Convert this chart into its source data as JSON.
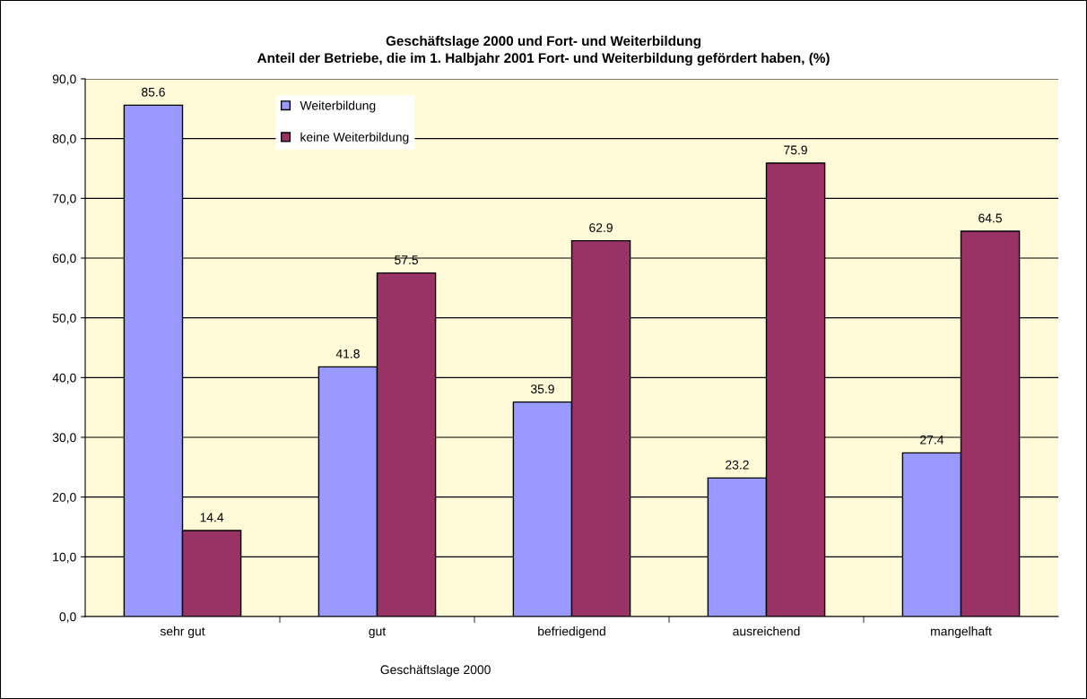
{
  "chart_data": {
    "type": "bar",
    "title": "Geschäftslage 2000 und Fort- und Weiterbildung",
    "subtitle": "Anteil der Betriebe, die im 1. Halbjahr 2001 Fort- und Weiterbildung gefördert haben, (%)",
    "xlabel": "Geschäftslage 2000",
    "categories": [
      "sehr gut",
      "gut",
      "befriedigend",
      "ausreichend",
      "mangelhaft"
    ],
    "series": [
      {
        "name": "Weiterbildung",
        "color": "#9999ff",
        "values": [
          85.6,
          41.8,
          35.9,
          23.2,
          27.4
        ]
      },
      {
        "name": "keine Weiterbildung",
        "color": "#993366",
        "values": [
          14.4,
          57.5,
          62.9,
          75.9,
          64.5
        ]
      }
    ],
    "ylim": [
      0,
      90
    ],
    "yticks": [
      {
        "value": 0,
        "label": "0,0"
      },
      {
        "value": 10,
        "label": "10,0"
      },
      {
        "value": 20,
        "label": "20,0"
      },
      {
        "value": 30,
        "label": "30,0"
      },
      {
        "value": 40,
        "label": "40,0"
      },
      {
        "value": 50,
        "label": "50,0"
      },
      {
        "value": 60,
        "label": "60,0"
      },
      {
        "value": 70,
        "label": "70,0"
      },
      {
        "value": 80,
        "label": "80,0"
      },
      {
        "value": 90,
        "label": "90,0"
      }
    ],
    "grid": "y",
    "legend": "top left",
    "data_labels": true
  }
}
